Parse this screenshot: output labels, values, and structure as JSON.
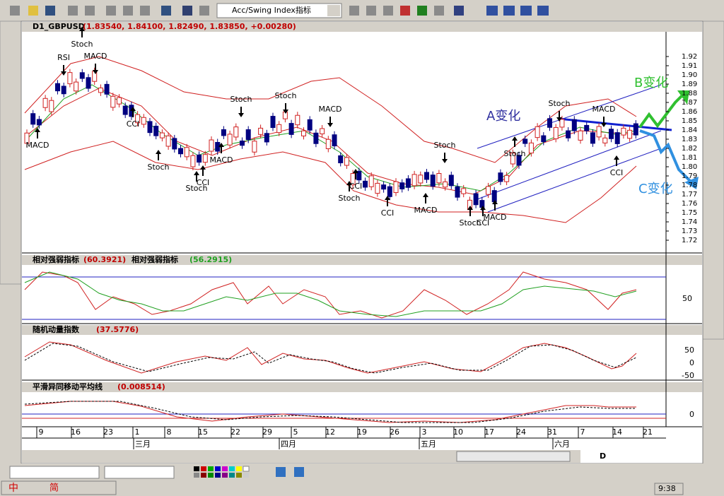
{
  "toolbar": {
    "indicator_select": "Acc/Swing Index指标"
  },
  "price_panel": {
    "symbol": "D1_GBPUSD",
    "quote": "(1.83540, 1.84100, 1.82490, 1.83850, +0.00280)",
    "axis_labels": [
      "1.92",
      "1.91",
      "1.90",
      "1.89",
      "1.88",
      "1.87",
      "1.86",
      "1.85",
      "1.84",
      "1.83",
      "1.82",
      "1.81",
      "1.80",
      "1.79",
      "1.78",
      "1.77",
      "1.76",
      "1.75",
      "1.74",
      "1.73",
      "1.72"
    ],
    "signals": [
      "RSI",
      "Stoch",
      "MACD",
      "MACD",
      "CCI",
      "Stoch",
      "CCI",
      "Stoch",
      "MACD",
      "Stoch",
      "Stoch",
      "MACD",
      "CCI",
      "Stoch",
      "CCI",
      "MACD",
      "Stoch",
      "Stoch",
      "CCI",
      "MACD",
      "Stoch",
      "Stoch",
      "MACD",
      "CCI"
    ],
    "scenario_a": "A变化",
    "scenario_b": "B变化",
    "scenario_c": "C变化"
  },
  "rsi_panel": {
    "title": "相对强弱指标",
    "value": "(60.3921)",
    "title2": "相对强弱指标",
    "value2": "(56.2915)",
    "axis_labels": [
      "50"
    ]
  },
  "momentum_panel": {
    "title": "随机动量指数",
    "value": "(37.5776)",
    "axis_labels": [
      "50",
      "0",
      "-50"
    ]
  },
  "macd_panel": {
    "title": "平滑异同移动平均线",
    "value": "(0.008514)",
    "axis_labels": [
      "0"
    ]
  },
  "date_axis": {
    "days": [
      "9",
      "16",
      "23",
      "1",
      "8",
      "15",
      "22",
      "29",
      "5",
      "12",
      "19",
      "26",
      "3",
      "10",
      "17",
      "24",
      "31",
      "7",
      "14",
      "21"
    ],
    "months": [
      "三月",
      "四月",
      "五月",
      "六月"
    ]
  },
  "navigator": {
    "period": "D"
  },
  "ime_bar": {
    "lang": "中",
    "mode": "简"
  },
  "status_bar": {
    "time": "9:38"
  }
}
